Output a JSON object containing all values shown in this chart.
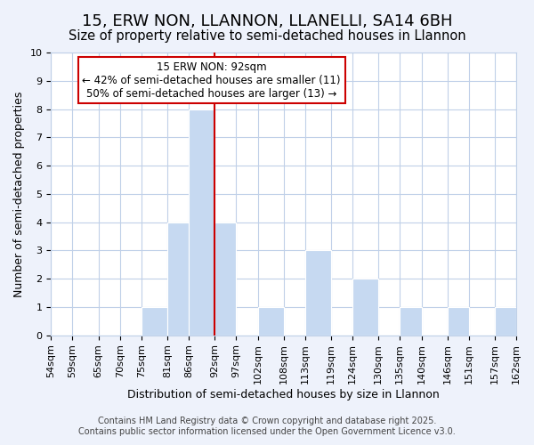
{
  "title": "15, ERW NON, LLANNON, LLANELLI, SA14 6BH",
  "subtitle": "Size of property relative to semi-detached houses in Llannon",
  "xlabel": "Distribution of semi-detached houses by size in Llannon",
  "ylabel": "Number of semi-detached properties",
  "bin_edges": [
    54,
    59,
    65,
    70,
    75,
    81,
    86,
    92,
    97,
    102,
    108,
    113,
    119,
    124,
    130,
    135,
    140,
    146,
    151,
    157,
    162
  ],
  "bar_counts": [
    0,
    0,
    0,
    0,
    1,
    4,
    8,
    4,
    0,
    1,
    0,
    3,
    0,
    2,
    0,
    1,
    0,
    1,
    0,
    1
  ],
  "bar_color": "#c6d9f1",
  "grid_color": "#c0d0e8",
  "vline_x": 92,
  "vline_color": "#cc0000",
  "annotation_title": "15 ERW NON: 92sqm",
  "annotation_line1": "← 42% of semi-detached houses are smaller (11)",
  "annotation_line2": "50% of semi-detached houses are larger (13) →",
  "annotation_box_color": "#ffffff",
  "annotation_box_edge": "#cc0000",
  "ylim": [
    0,
    10
  ],
  "yticks": [
    0,
    1,
    2,
    3,
    4,
    5,
    6,
    7,
    8,
    9,
    10
  ],
  "footnote1": "Contains HM Land Registry data © Crown copyright and database right 2025.",
  "footnote2": "Contains public sector information licensed under the Open Government Licence v3.0.",
  "background_color": "#eef2fb",
  "plot_bg_color": "#ffffff",
  "title_fontsize": 13,
  "subtitle_fontsize": 10.5,
  "tick_fontsize": 8,
  "footnote_fontsize": 7
}
